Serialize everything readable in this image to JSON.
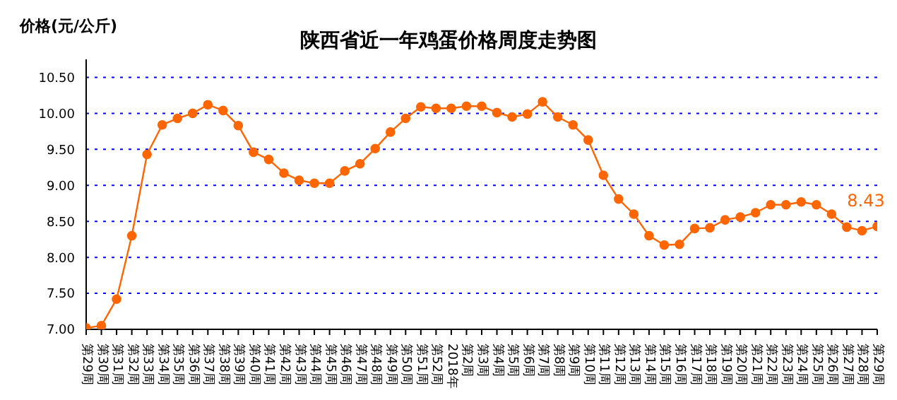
{
  "chart_data": {
    "type": "line",
    "title": "陕西省近一年鸡蛋价格周度走势图",
    "ylabel": "价格(元/公斤)",
    "categories": [
      "第29周",
      "第30周",
      "第31周",
      "第32周",
      "第33周",
      "第34周",
      "第35周",
      "第36周",
      "第37周",
      "第38周",
      "第39周",
      "第40周",
      "第41周",
      "第42周",
      "第43周",
      "第44周",
      "第45周",
      "第46周",
      "第47周",
      "第48周",
      "第49周",
      "第50周",
      "第51周",
      "第52周",
      "2018年",
      "第2周",
      "第3周",
      "第4周",
      "第5周",
      "第6周",
      "第7周",
      "第8周",
      "第9周",
      "第10周",
      "第11周",
      "第12周",
      "第13周",
      "第14周",
      "第15周",
      "第16周",
      "第17周",
      "第18周",
      "第19周",
      "第20周",
      "第21周",
      "第22周",
      "第23周",
      "第24周",
      "第25周",
      "第26周",
      "第27周",
      "第28周",
      "第29周"
    ],
    "series": [
      {
        "color": "#ff6600",
        "values": [
          7.02,
          7.05,
          7.42,
          8.3,
          9.43,
          9.84,
          9.93,
          10.0,
          10.12,
          10.04,
          9.83,
          9.46,
          9.36,
          9.17,
          9.07,
          9.03,
          9.03,
          9.2,
          9.3,
          9.51,
          9.74,
          9.93,
          10.09,
          10.07,
          10.07,
          10.1,
          10.1,
          10.01,
          9.95,
          9.99,
          10.16,
          9.95,
          9.84,
          9.63,
          9.14,
          8.81,
          8.6,
          8.3,
          8.17,
          8.18,
          8.4,
          8.41,
          8.52,
          8.56,
          8.62,
          8.73,
          8.73,
          8.77,
          8.73,
          8.6,
          8.42,
          8.37,
          8.43
        ],
        "value_labels": [
          null,
          null,
          null,
          null,
          null,
          null,
          null,
          null,
          null,
          null,
          null,
          null,
          null,
          null,
          null,
          null,
          null,
          null,
          null,
          null,
          null,
          null,
          null,
          null,
          null,
          null,
          null,
          null,
          null,
          null,
          null,
          null,
          null,
          null,
          null,
          null,
          null,
          null,
          null,
          null,
          null,
          null,
          null,
          null,
          null,
          null,
          null,
          null,
          null,
          null,
          null,
          null,
          "8.43"
        ]
      }
    ],
    "ylim": [
      7,
      10.75
    ],
    "yticks": [
      {
        "value": 7,
        "label": "7.00"
      },
      {
        "value": 7.5,
        "label": "7.50"
      },
      {
        "value": 8,
        "label": "8.00"
      },
      {
        "value": 8.5,
        "label": "8.50"
      },
      {
        "value": 9,
        "label": "9.00"
      },
      {
        "value": 9.5,
        "label": "9.50"
      },
      {
        "value": 10,
        "label": "10.00"
      },
      {
        "value": 10.5,
        "label": "10.50"
      }
    ],
    "grid": "y",
    "marker": "circle",
    "line_style": "solid"
  }
}
